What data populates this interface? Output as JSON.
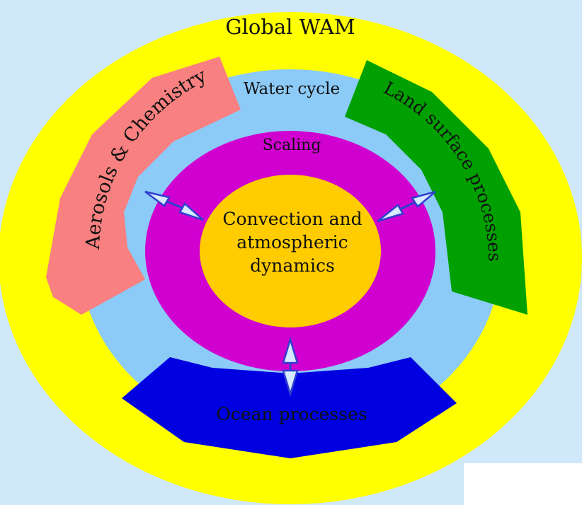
{
  "diagram": {
    "outer_ring_label": "Global WAM",
    "water_cycle_label": "Water cycle",
    "scaling_label": "Scaling",
    "core_label_lines": [
      "Convection and",
      "atmospheric",
      "dynamics"
    ],
    "left_band_label": "Aerosols & Chemistry",
    "right_band_label": "Land surface processes",
    "bottom_band_label": "Ocean processes"
  },
  "colors": {
    "background": "#cfe8fa",
    "outer_ring": "#ffff00",
    "water_cycle_ring": "#8ccaf7",
    "scaling_ring": "#d000d0",
    "core": "#ffcc00",
    "aerosols_band": "#f88080",
    "land_band": "#00a000",
    "ocean_band": "#0000e0",
    "arrow_fill": "#d8eaff",
    "arrow_stroke": "#3040d0"
  }
}
